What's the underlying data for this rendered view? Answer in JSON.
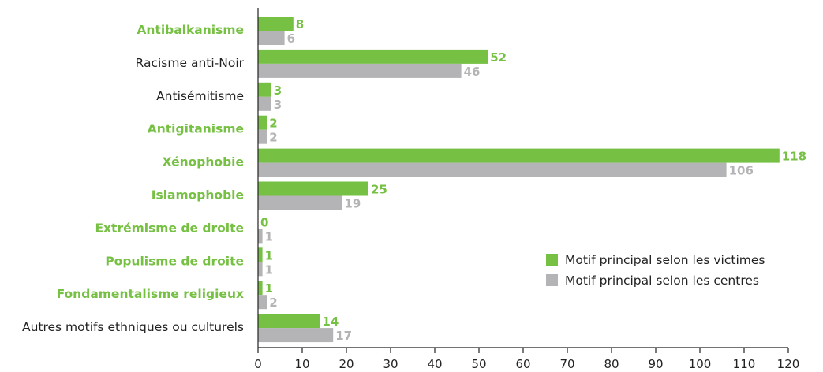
{
  "colors": {
    "victimes": "#76c043",
    "centres": "#b4b4b6",
    "highlight_label": "#76c043",
    "normal_label": "#222222",
    "axis": "#222222"
  },
  "chart_data": {
    "type": "bar",
    "orientation": "horizontal",
    "categories": [
      "Antibalkanisme",
      "Racisme anti-Noir",
      "Antisémitisme",
      "Antigitanisme",
      "Xénophobie",
      "Islamophobie",
      "Extrémisme de droite",
      "Populisme de droite",
      "Fondamentalisme religieux",
      "Autres motifs ethniques ou culturels"
    ],
    "highlighted_categories": [
      "Antibalkanisme",
      "Antigitanisme",
      "Xénophobie",
      "Islamophobie",
      "Extrémisme de droite",
      "Populisme de droite",
      "Fondamentalisme religieux"
    ],
    "series": [
      {
        "name": "Motif principal selon les victimes",
        "values": [
          8,
          52,
          3,
          2,
          118,
          25,
          0,
          1,
          1,
          14
        ]
      },
      {
        "name": "Motif principal selon les centres",
        "values": [
          6,
          46,
          3,
          2,
          106,
          19,
          1,
          1,
          2,
          17
        ]
      }
    ],
    "xlim": [
      0,
      120
    ],
    "xticks": [
      0,
      10,
      20,
      30,
      40,
      50,
      60,
      70,
      80,
      90,
      100,
      110,
      120
    ],
    "grid": false,
    "legend_position": "bottom-right"
  }
}
